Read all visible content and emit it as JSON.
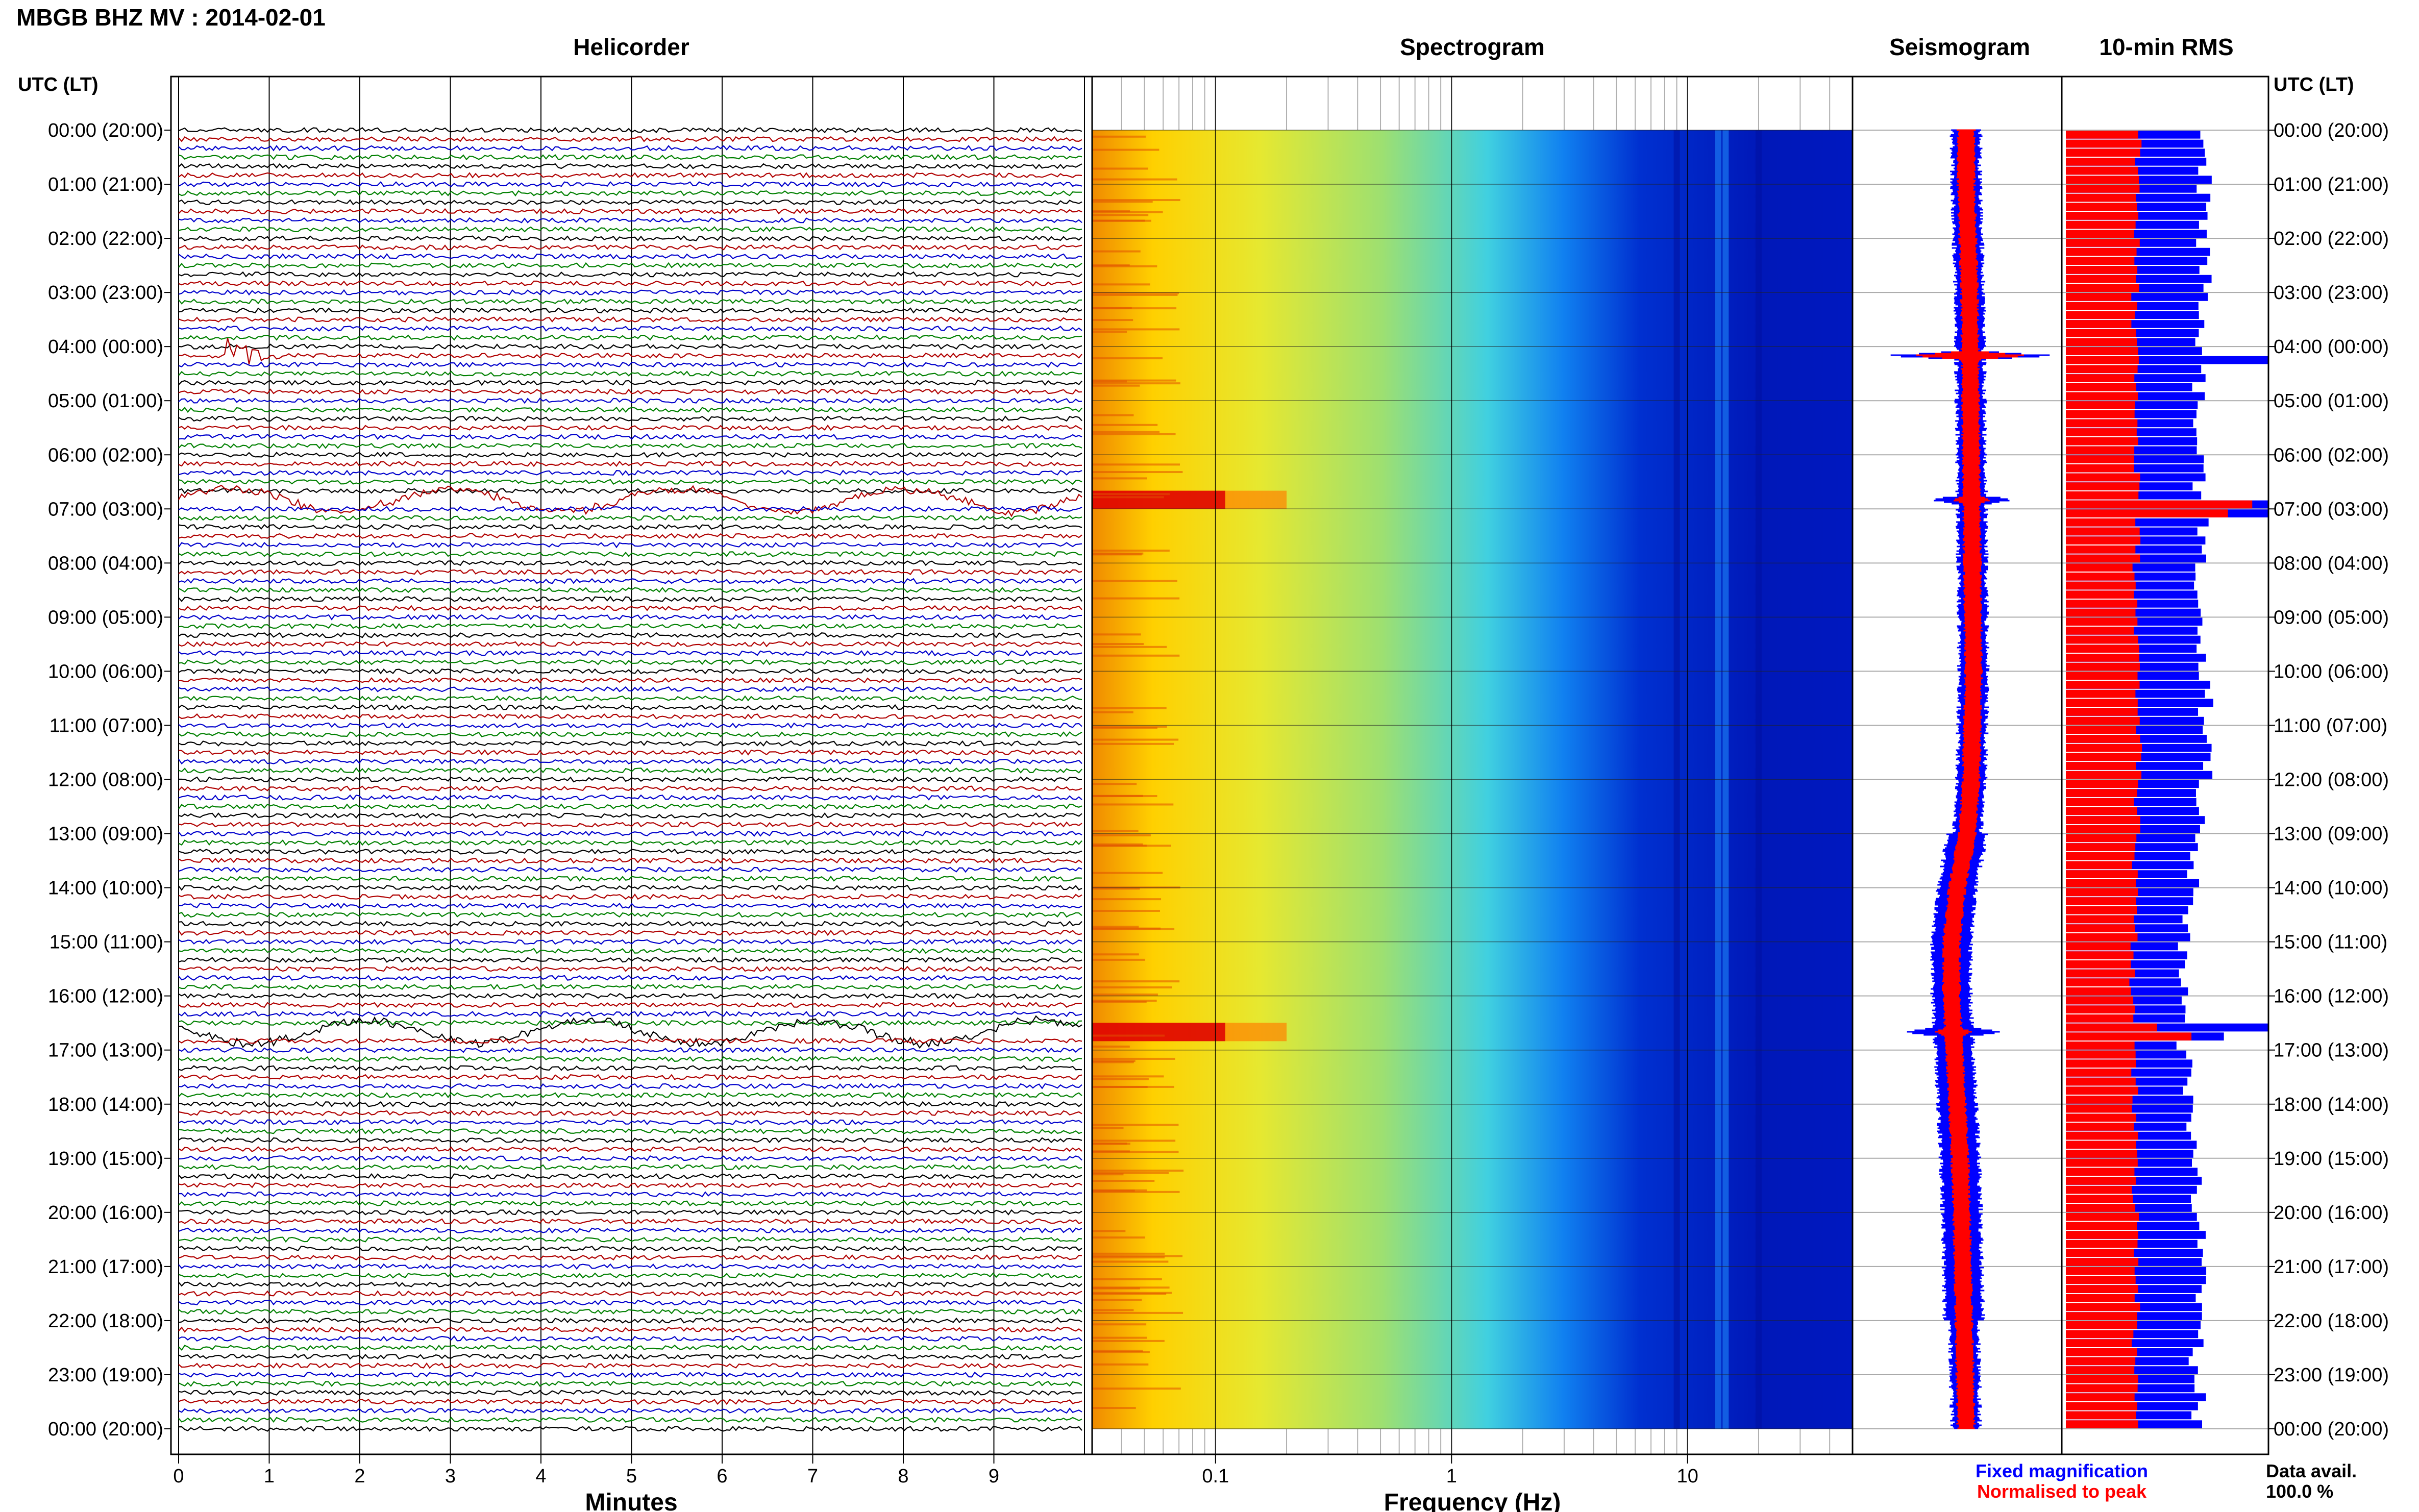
{
  "header": {
    "title": "MBGB BHZ MV : 2014-02-01"
  },
  "panels": {
    "helicorder": "Helicorder",
    "spectrogram": "Spectrogram",
    "seismogram": "Seismogram",
    "rms": "10-min RMS"
  },
  "axis_titles": {
    "utc_left": "UTC (LT)",
    "utc_right": "UTC (LT)",
    "minutes": "Minutes",
    "frequency": "Frequency (Hz)"
  },
  "legend": {
    "fixed": "Fixed magnification",
    "normalised": "Normalised to peak",
    "data_avail_label": "Data avail.",
    "data_avail_value": "100.0 %"
  },
  "colors": {
    "trace_cycle": [
      "#000000",
      "#b00000",
      "#0000cc",
      "#008000"
    ],
    "fixed": "#0000ff",
    "normalised": "#ff0000"
  },
  "chart_data": [
    {
      "type": "line",
      "panel": "Helicorder",
      "xlabel": "Minutes",
      "x_ticks": [
        "0",
        "1",
        "2",
        "3",
        "4",
        "5",
        "6",
        "7",
        "8",
        "9"
      ],
      "xlim": [
        0,
        10
      ],
      "ylabel": "UTC (LT)",
      "time_labels": [
        "00:00 (20:00)",
        "01:00 (21:00)",
        "02:00 (22:00)",
        "03:00 (23:00)",
        "04:00 (00:00)",
        "05:00 (01:00)",
        "06:00 (02:00)",
        "07:00 (03:00)",
        "08:00 (04:00)",
        "09:00 (05:00)",
        "10:00 (06:00)",
        "11:00 (07:00)",
        "12:00 (08:00)",
        "13:00 (09:00)",
        "14:00 (10:00)",
        "15:00 (11:00)",
        "16:00 (12:00)",
        "17:00 (13:00)",
        "18:00 (14:00)",
        "19:00 (15:00)",
        "20:00 (16:00)",
        "21:00 (17:00)",
        "22:00 (18:00)",
        "23:00 (19:00)",
        "00:00 (20:00)"
      ],
      "traces_per_hour": 6,
      "events_utc": [
        "04:10",
        "06:50",
        "16:40"
      ]
    },
    {
      "type": "heatmap",
      "panel": "Spectrogram",
      "xlabel": "Frequency (Hz)",
      "x_scale": "log",
      "xlim": [
        0.03,
        50
      ],
      "x_ticks": [
        "0.1",
        "1",
        "10"
      ],
      "colormap": "jet",
      "strong_rows_utc": [
        "06:50",
        "16:40"
      ]
    },
    {
      "type": "line",
      "panel": "Seismogram",
      "series": [
        {
          "name": "Fixed magnification",
          "color": "#0000ff"
        },
        {
          "name": "Normalised to peak",
          "color": "#ff0000"
        }
      ],
      "centre_shift_by_hour": [
        0.16,
        0.16,
        0.19,
        0.22,
        0.23,
        0.24,
        0.25,
        0.26,
        0.27,
        0.28,
        0.29,
        0.27,
        0.25,
        0.18,
        0.0,
        -0.1,
        -0.1,
        -0.05,
        0.0,
        0.05,
        0.08,
        0.1,
        0.12,
        0.14,
        0.16
      ],
      "spikes_utc": [
        "04:10",
        "06:50",
        "16:40"
      ]
    },
    {
      "type": "bar",
      "panel": "10-min RMS",
      "series": [
        {
          "name": "Fixed magnification",
          "color": "#0000ff"
        },
        {
          "name": "Normalised to peak",
          "color": "#ff0000"
        }
      ],
      "hourly_fixed_rms": [
        0.7,
        0.68,
        0.69,
        0.67,
        0.66,
        0.64,
        0.66,
        0.68,
        0.64,
        0.66,
        0.7,
        0.7,
        0.67,
        0.64,
        0.6,
        0.58,
        0.58,
        0.62,
        0.64,
        0.65,
        0.66,
        0.67,
        0.65,
        0.66
      ],
      "hourly_norm_rms": [
        0.36,
        0.35,
        0.35,
        0.34,
        0.34,
        0.34,
        0.35,
        0.36,
        0.34,
        0.35,
        0.36,
        0.36,
        0.35,
        0.34,
        0.34,
        0.33,
        0.33,
        0.34,
        0.34,
        0.34,
        0.35,
        0.35,
        0.34,
        0.35
      ],
      "peaks": [
        {
          "utc": "04:10",
          "fixed": 1.0,
          "norm": 0.36
        },
        {
          "utc": "06:50",
          "fixed": 1.0,
          "norm": 0.92
        },
        {
          "utc": "07:00",
          "fixed": 1.0,
          "norm": 0.8
        },
        {
          "utc": "16:30",
          "fixed": 1.0,
          "norm": 0.45
        },
        {
          "utc": "16:40",
          "fixed": 0.78,
          "norm": 0.62
        }
      ]
    }
  ]
}
